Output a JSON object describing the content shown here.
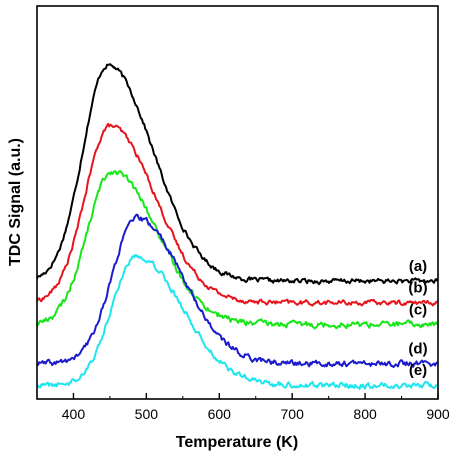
{
  "chart_data": {
    "type": "line",
    "xlabel": "Temperature (K)",
    "ylabel": "TDC Signal (a.u.)",
    "xlim": [
      350,
      900
    ],
    "xticks": [
      400,
      500,
      600,
      700,
      800,
      900
    ],
    "y_tick_labels_shown": false,
    "grid": false,
    "legend": "inline labels at right",
    "series": [
      {
        "name": "(a)",
        "color": "#000000",
        "baseline": 0.3,
        "peak_x": 447,
        "peak_height": 0.55,
        "noise": 0.01
      },
      {
        "name": "(b)",
        "color": "#e8141c",
        "baseline": 0.245,
        "peak_x": 450,
        "peak_height": 0.45,
        "noise": 0.01
      },
      {
        "name": "(c)",
        "color": "#19e619",
        "baseline": 0.19,
        "peak_x": 453,
        "peak_height": 0.39,
        "noise": 0.013
      },
      {
        "name": "(d)",
        "color": "#1c1ccc",
        "baseline": 0.09,
        "peak_x": 487,
        "peak_height": 0.37,
        "noise": 0.012
      },
      {
        "name": "(e)",
        "color": "#1ee6ee",
        "baseline": 0.035,
        "peak_x": 487,
        "peak_height": 0.33,
        "noise": 0.012
      }
    ]
  }
}
